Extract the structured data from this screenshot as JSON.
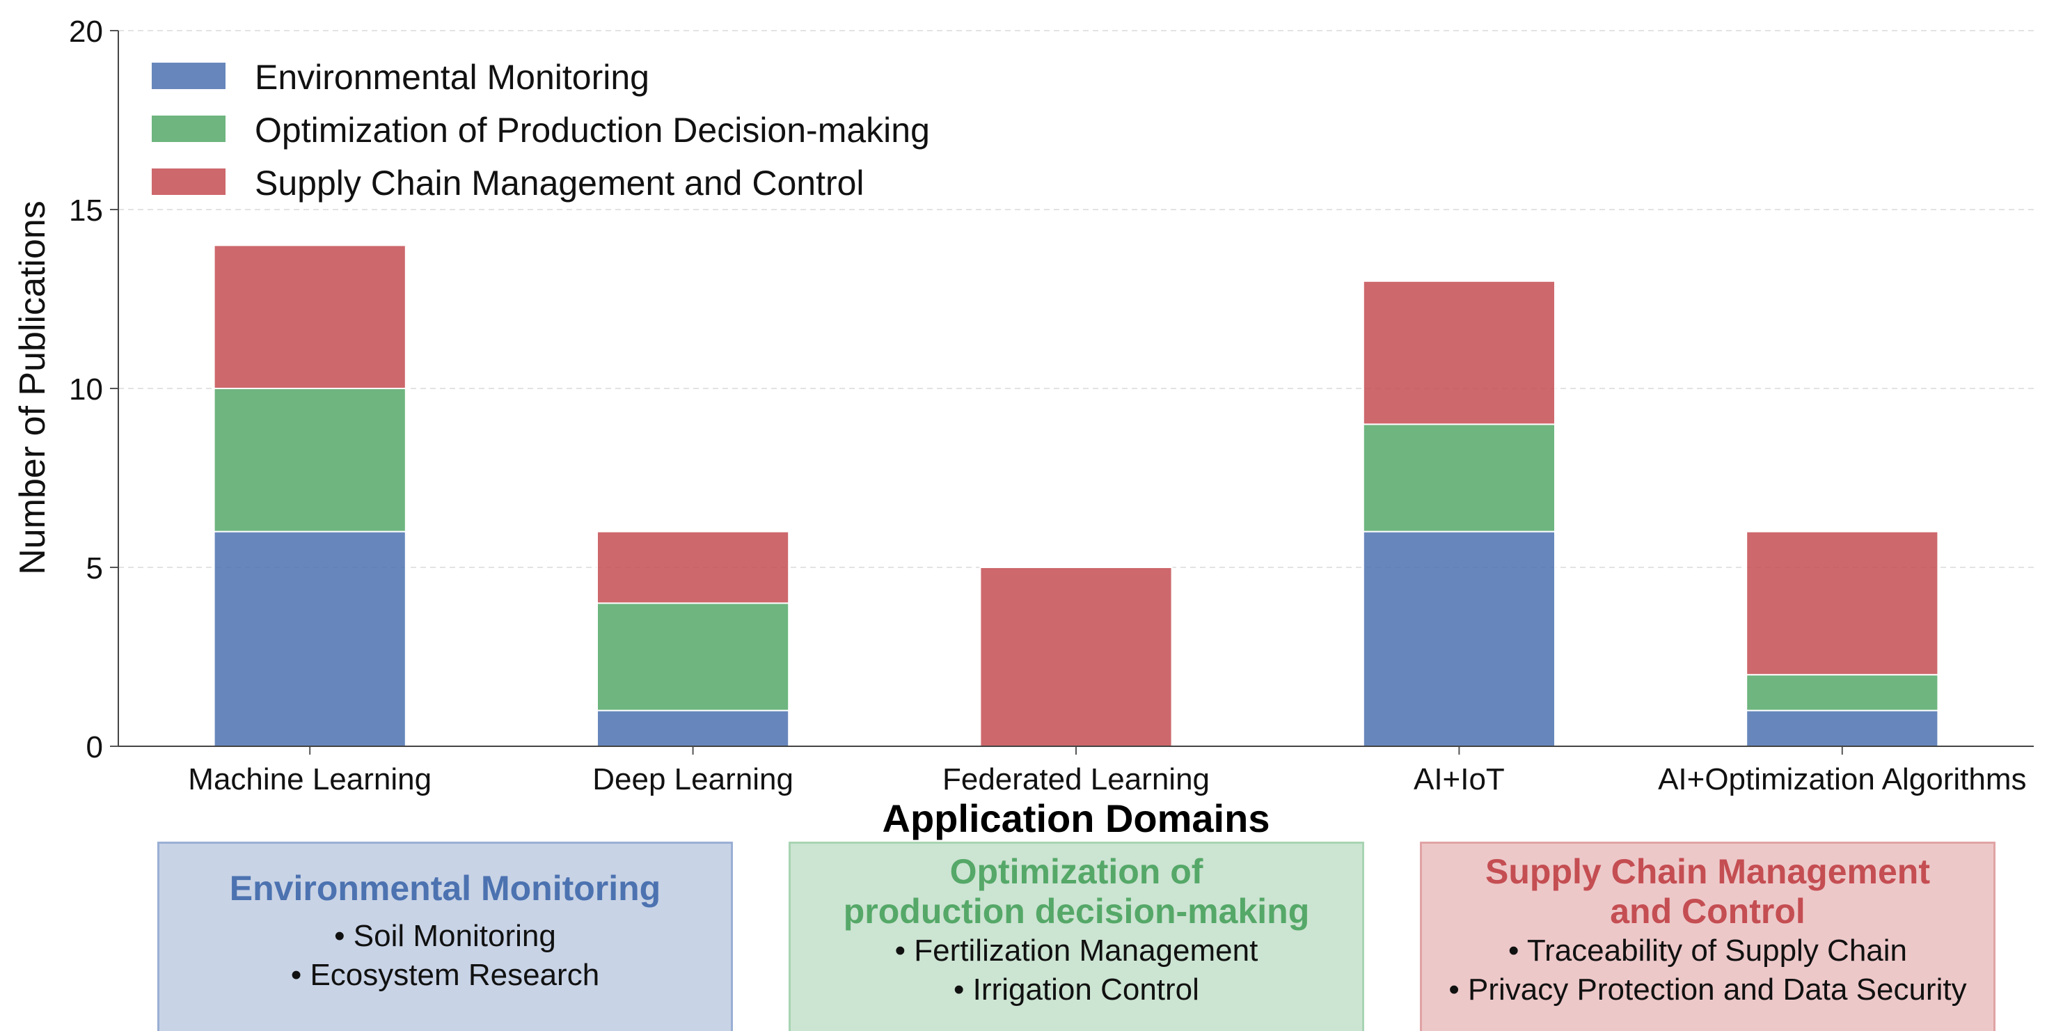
{
  "chart_data": {
    "type": "bar",
    "stacked": true,
    "categories": [
      "Machine Learning",
      "Deep Learning",
      "Federated Learning",
      "AI+IoT",
      "AI+Optimization Algorithms"
    ],
    "series": [
      {
        "name": "Environmental Monitoring",
        "values": [
          6,
          1,
          0,
          6,
          1
        ],
        "color": "#4C72B0"
      },
      {
        "name": "Optimization of Production Decision-making",
        "values": [
          4,
          3,
          0,
          3,
          1
        ],
        "color": "#55A868"
      },
      {
        "name": "Supply Chain Management and Control",
        "values": [
          4,
          2,
          5,
          4,
          4
        ],
        "color": "#C44E52"
      }
    ],
    "xlabel": "Application Domains",
    "ylabel": "Number of Publications",
    "ylim": [
      0,
      20
    ],
    "yticks": [
      0,
      5,
      10,
      15,
      20
    ],
    "grid": "horizontal dashed",
    "legend_position": "top-left"
  },
  "panels": [
    {
      "title": "Environmental Monitoring",
      "items": [
        "• Soil Monitoring",
        "• Ecosystem Research"
      ],
      "title_color": "#4C72B0",
      "bg_color": "#C8D3E6",
      "border_color": "#9AAFD4"
    },
    {
      "title": "Optimization of\nproduction decision-making",
      "items": [
        "• Fertilization Management",
        "• Irrigation Control"
      ],
      "title_color": "#55A868",
      "bg_color": "#CCE4D2",
      "border_color": "#A8D4B3"
    },
    {
      "title": "Supply Chain Management\nand Control",
      "items": [
        "• Traceability of Supply Chain",
        "• Privacy Protection and Data Security"
      ],
      "title_color": "#C44E52",
      "bg_color": "#EDC8C9",
      "border_color": "#E0A3A5"
    }
  ]
}
